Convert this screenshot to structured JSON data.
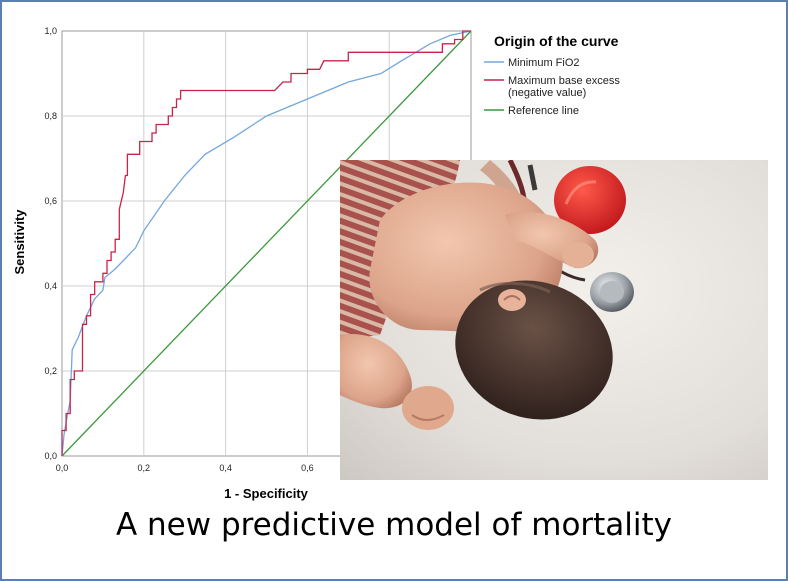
{
  "chart_data": {
    "type": "line",
    "xlabel": "1 - Specificity",
    "ylabel": "Sensitivity",
    "xlim": [
      0,
      1
    ],
    "ylim": [
      0,
      1
    ],
    "x_ticks": [
      "0,0",
      "0,2",
      "0,4",
      "0,6"
    ],
    "y_ticks": [
      "0,0",
      "0,2",
      "0,4",
      "0,6",
      "0,8",
      "1,0"
    ],
    "grid": true,
    "legend": {
      "title": "Origin of the curve",
      "placement": "right",
      "entries": [
        {
          "lines": [
            "Minimum FiO2"
          ],
          "color": "#74a7dc"
        },
        {
          "lines": [
            "Maximum base excess",
            "(negative value)"
          ],
          "color": "#c8244a"
        },
        {
          "lines": [
            "Reference line"
          ],
          "color": "#3a9a3a"
        }
      ]
    },
    "series": [
      {
        "name": "Minimum FiO2",
        "color": "#74a7dc",
        "points": [
          [
            0,
            0
          ],
          [
            0.005,
            0.05
          ],
          [
            0.012,
            0.09
          ],
          [
            0.02,
            0.13
          ],
          [
            0.025,
            0.25
          ],
          [
            0.04,
            0.28
          ],
          [
            0.06,
            0.33
          ],
          [
            0.08,
            0.37
          ],
          [
            0.1,
            0.39
          ],
          [
            0.105,
            0.42
          ],
          [
            0.13,
            0.44
          ],
          [
            0.18,
            0.49
          ],
          [
            0.2,
            0.53
          ],
          [
            0.25,
            0.6
          ],
          [
            0.3,
            0.66
          ],
          [
            0.35,
            0.71
          ],
          [
            0.42,
            0.75
          ],
          [
            0.5,
            0.8
          ],
          [
            0.6,
            0.84
          ],
          [
            0.7,
            0.88
          ],
          [
            0.78,
            0.9
          ],
          [
            0.83,
            0.93
          ],
          [
            0.9,
            0.97
          ],
          [
            0.95,
            0.99
          ],
          [
            1,
            1
          ]
        ]
      },
      {
        "name": "Maximum base excess (negative value)",
        "color": "#c8244a",
        "points": [
          [
            0,
            0
          ],
          [
            0,
            0.06
          ],
          [
            0.01,
            0.06
          ],
          [
            0.01,
            0.1
          ],
          [
            0.02,
            0.1
          ],
          [
            0.02,
            0.18
          ],
          [
            0.03,
            0.18
          ],
          [
            0.03,
            0.2
          ],
          [
            0.05,
            0.2
          ],
          [
            0.05,
            0.31
          ],
          [
            0.06,
            0.31
          ],
          [
            0.06,
            0.33
          ],
          [
            0.07,
            0.33
          ],
          [
            0.07,
            0.38
          ],
          [
            0.08,
            0.38
          ],
          [
            0.08,
            0.41
          ],
          [
            0.1,
            0.41
          ],
          [
            0.1,
            0.43
          ],
          [
            0.11,
            0.43
          ],
          [
            0.11,
            0.46
          ],
          [
            0.12,
            0.46
          ],
          [
            0.12,
            0.48
          ],
          [
            0.13,
            0.48
          ],
          [
            0.13,
            0.51
          ],
          [
            0.14,
            0.51
          ],
          [
            0.14,
            0.58
          ],
          [
            0.15,
            0.62
          ],
          [
            0.155,
            0.66
          ],
          [
            0.16,
            0.66
          ],
          [
            0.16,
            0.71
          ],
          [
            0.19,
            0.71
          ],
          [
            0.19,
            0.74
          ],
          [
            0.22,
            0.74
          ],
          [
            0.22,
            0.76
          ],
          [
            0.23,
            0.76
          ],
          [
            0.23,
            0.78
          ],
          [
            0.26,
            0.78
          ],
          [
            0.26,
            0.8
          ],
          [
            0.27,
            0.8
          ],
          [
            0.27,
            0.82
          ],
          [
            0.28,
            0.82
          ],
          [
            0.28,
            0.84
          ],
          [
            0.29,
            0.84
          ],
          [
            0.29,
            0.86
          ],
          [
            0.52,
            0.86
          ],
          [
            0.54,
            0.88
          ],
          [
            0.56,
            0.88
          ],
          [
            0.56,
            0.9
          ],
          [
            0.6,
            0.9
          ],
          [
            0.6,
            0.91
          ],
          [
            0.63,
            0.91
          ],
          [
            0.64,
            0.93
          ],
          [
            0.7,
            0.93
          ],
          [
            0.7,
            0.95
          ],
          [
            0.93,
            0.95
          ],
          [
            0.93,
            0.97
          ],
          [
            0.96,
            0.97
          ],
          [
            0.96,
            0.98
          ],
          [
            0.98,
            0.98
          ],
          [
            0.98,
            1.0
          ],
          [
            1,
            1
          ]
        ]
      },
      {
        "name": "Reference line",
        "color": "#3a9a3a",
        "points": [
          [
            0,
            0
          ],
          [
            1,
            1
          ]
        ]
      }
    ]
  },
  "footer": {
    "title": "A new predictive model of mortality"
  },
  "photo": {
    "subject": "newborn-with-stethoscope"
  }
}
